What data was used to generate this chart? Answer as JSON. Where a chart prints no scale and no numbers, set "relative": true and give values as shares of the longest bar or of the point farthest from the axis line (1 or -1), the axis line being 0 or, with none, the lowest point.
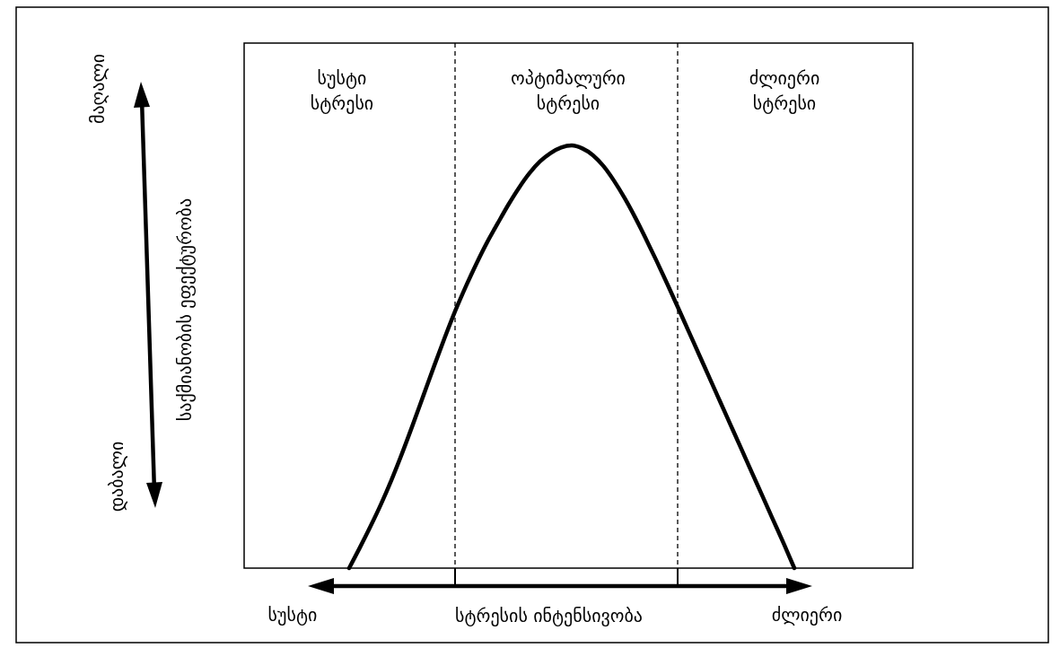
{
  "chart_data": {
    "type": "line",
    "relative": true,
    "xlabel": "სტრესის ინტენსივობა",
    "categories": [
      null,
      null,
      null,
      null,
      null,
      null,
      null,
      null,
      null,
      null,
      null,
      null,
      null,
      null,
      null,
      null,
      null,
      null,
      null,
      null,
      null,
      null,
      null,
      null,
      null,
      null,
      null,
      null,
      null,
      null,
      null,
      null,
      null,
      null,
      null,
      null,
      null,
      null,
      null,
      null,
      null,
      null,
      null
    ],
    "color": "#000000",
    "values": [
      0,
      0.048,
      0.098,
      0.151,
      0.209,
      0.272,
      0.339,
      0.408,
      0.477,
      0.544,
      0.608,
      0.666,
      0.72,
      0.77,
      0.815,
      0.859,
      0.899,
      0.934,
      0.962,
      0.982,
      0.995,
      1,
      0.993,
      0.977,
      0.951,
      0.916,
      0.875,
      0.829,
      0.779,
      0.727,
      0.673,
      0.618,
      0.562,
      0.506,
      0.45,
      0.394,
      0.338,
      0.282,
      0.226,
      0.17,
      0.114,
      0.058,
      0
    ],
    "annotations": [
      "სუსტი სტრესი",
      "ოპტიმალური სტრესი",
      "ძლიერი სტრესი",
      "სუსტი",
      "ძლიერი",
      "მაღალი",
      "დაბალი",
      "საქმიანობის ეფექტურობა"
    ]
  }
}
